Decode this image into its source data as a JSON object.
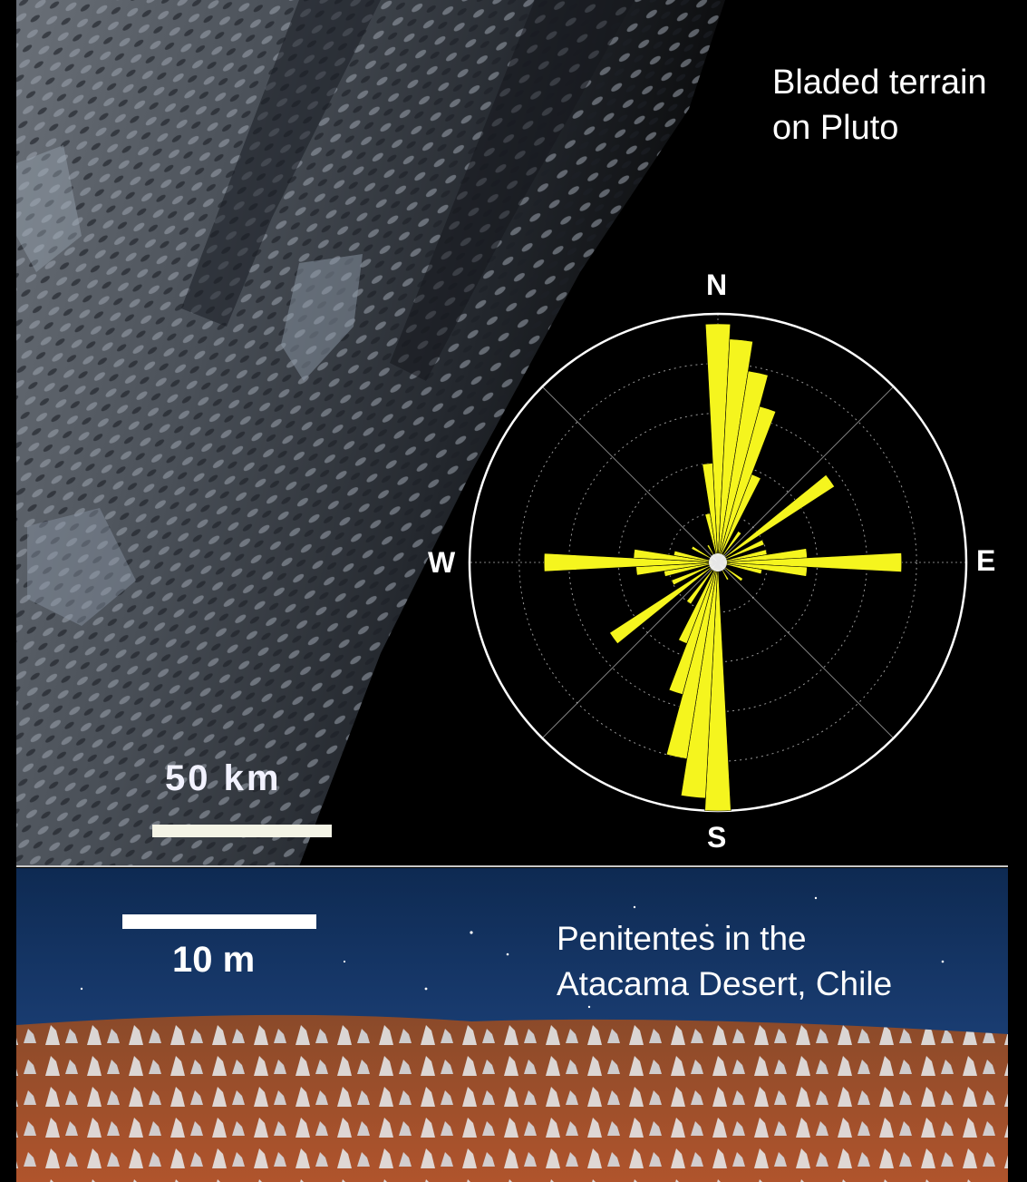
{
  "pluto": {
    "title_line1": "Bladed terrain",
    "title_line2": "on Pluto",
    "scale_label": "50 km"
  },
  "rose_diagram": {
    "compass": {
      "north": "N",
      "south": "S",
      "west": "W",
      "east": "E"
    },
    "bar_color": "#f5f51e",
    "rings": 5,
    "petals": [
      {
        "bearing": 0,
        "relative_length": 0.96
      },
      {
        "bearing": 6,
        "relative_length": 0.9
      },
      {
        "bearing": 12,
        "relative_length": 0.78
      },
      {
        "bearing": 18,
        "relative_length": 0.65
      },
      {
        "bearing": 24,
        "relative_length": 0.38
      },
      {
        "bearing": 36,
        "relative_length": 0.15
      },
      {
        "bearing": 54,
        "relative_length": 0.56
      },
      {
        "bearing": 66,
        "relative_length": 0.2
      },
      {
        "bearing": 78,
        "relative_length": 0.2
      },
      {
        "bearing": 84,
        "relative_length": 0.36
      },
      {
        "bearing": 90,
        "relative_length": 0.74
      },
      {
        "bearing": 96,
        "relative_length": 0.36
      },
      {
        "bearing": 102,
        "relative_length": 0.18
      },
      {
        "bearing": 126,
        "relative_length": 0.12
      },
      {
        "bearing": 150,
        "relative_length": 0.08
      },
      {
        "bearing": 180,
        "relative_length": 1.0
      },
      {
        "bearing": 186,
        "relative_length": 0.95
      },
      {
        "bearing": 192,
        "relative_length": 0.8
      },
      {
        "bearing": 198,
        "relative_length": 0.55
      },
      {
        "bearing": 204,
        "relative_length": 0.35
      },
      {
        "bearing": 216,
        "relative_length": 0.2
      },
      {
        "bearing": 234,
        "relative_length": 0.52
      },
      {
        "bearing": 246,
        "relative_length": 0.2
      },
      {
        "bearing": 258,
        "relative_length": 0.22
      },
      {
        "bearing": 264,
        "relative_length": 0.33
      },
      {
        "bearing": 270,
        "relative_length": 0.7
      },
      {
        "bearing": 276,
        "relative_length": 0.34
      },
      {
        "bearing": 282,
        "relative_length": 0.18
      },
      {
        "bearing": 300,
        "relative_length": 0.12
      },
      {
        "bearing": 330,
        "relative_length": 0.08
      },
      {
        "bearing": 348,
        "relative_length": 0.2
      },
      {
        "bearing": 354,
        "relative_length": 0.4
      }
    ]
  },
  "earth": {
    "scale_label": "10 m",
    "title_line1": "Penitentes in the",
    "title_line2": "Atacama Desert, Chile"
  }
}
